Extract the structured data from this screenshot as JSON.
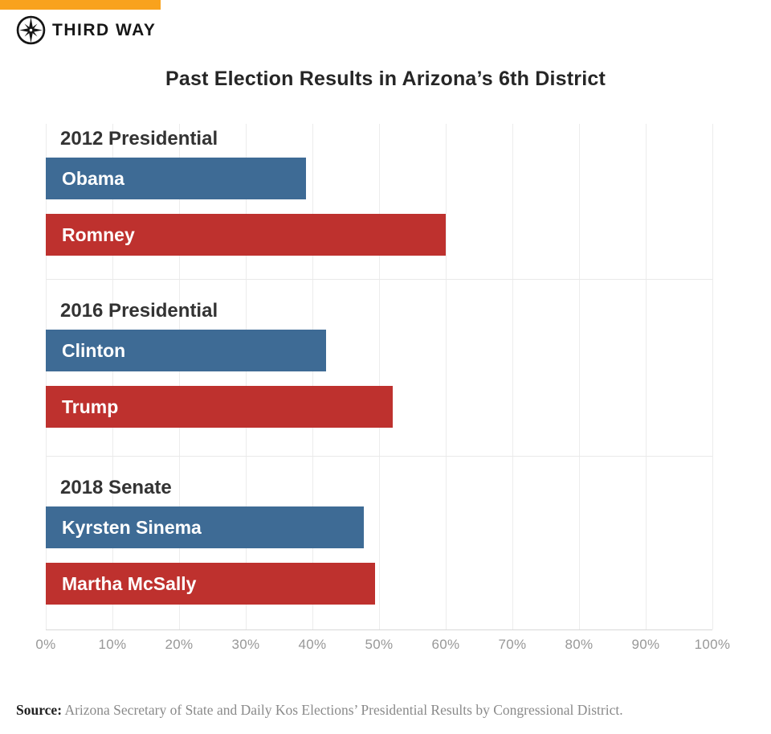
{
  "header": {
    "brand_name": "THIRD WAY",
    "accent_color": "#F9A21D"
  },
  "chart_data": {
    "type": "bar",
    "orientation": "horizontal",
    "title": "Past Election Results in Arizona’s 6th District",
    "xlabel": "",
    "ylabel": "",
    "xlim": [
      0,
      100
    ],
    "x_ticks": [
      "0%",
      "10%",
      "20%",
      "30%",
      "40%",
      "50%",
      "60%",
      "70%",
      "80%",
      "90%",
      "100%"
    ],
    "grid": "vertical gridlines on, horizontal group separators",
    "legend": "none (labels inside bars)",
    "colors": {
      "democrat": "#3E6B95",
      "republican": "#BE312E"
    },
    "groups": [
      {
        "label": "2012 Presidential",
        "bars": [
          {
            "name": "Obama",
            "value": 39,
            "party": "democrat"
          },
          {
            "name": "Romney",
            "value": 60,
            "party": "republican"
          }
        ]
      },
      {
        "label": "2016 Presidential",
        "bars": [
          {
            "name": "Clinton",
            "value": 42,
            "party": "democrat"
          },
          {
            "name": "Trump",
            "value": 52,
            "party": "republican"
          }
        ]
      },
      {
        "label": "2018 Senate",
        "bars": [
          {
            "name": "Kyrsten Sinema",
            "value": 47.7,
            "party": "democrat"
          },
          {
            "name": "Martha McSally",
            "value": 49.4,
            "party": "republican"
          }
        ]
      }
    ]
  },
  "footer": {
    "source_label": "Source:",
    "source_text": " Arizona Secretary of State and Daily Kos Elections’ Presidential Results by Congressional District."
  }
}
